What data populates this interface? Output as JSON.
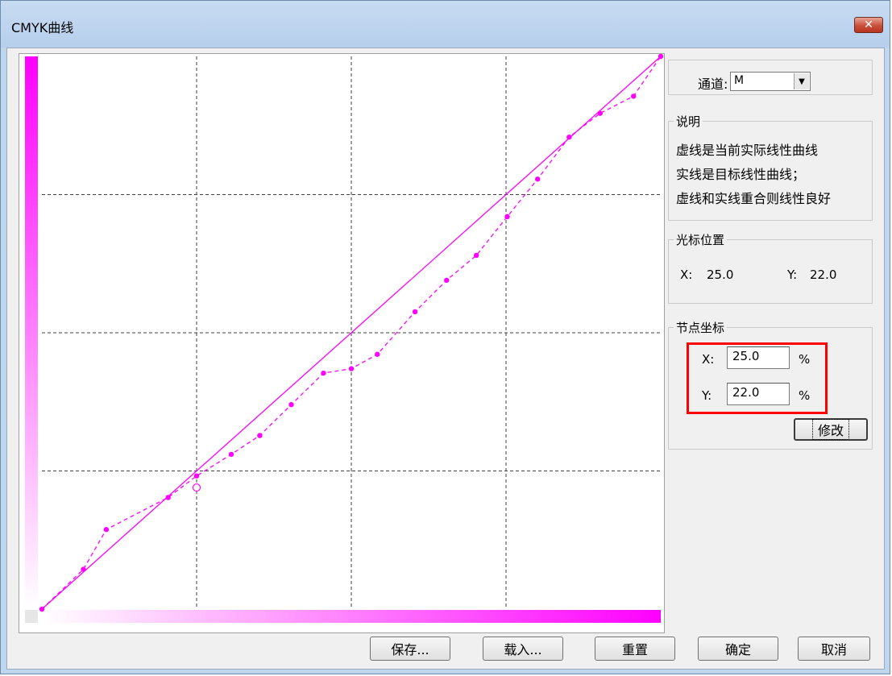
{
  "window": {
    "title": "CMYK曲线",
    "close_label": "✕"
  },
  "channel": {
    "label": "通道:",
    "value": "M",
    "arrow": "▼"
  },
  "description": {
    "title": "说明",
    "lines": [
      "虚线是当前实际线性曲线",
      "实线是目标线性曲线；",
      "虚线和实线重合则线性良好"
    ]
  },
  "cursor": {
    "title": "光标位置",
    "x_label": "X:",
    "x_value": "25.0",
    "y_label": "Y:",
    "y_value": "22.0"
  },
  "node": {
    "title": "节点坐标",
    "x_label": "X:",
    "x_value": "25.0",
    "y_label": "Y:",
    "y_value": "22.0",
    "unit": "%",
    "modify_label": "修改"
  },
  "buttons": {
    "save": "保存...",
    "load": "载入...",
    "reset": "重置",
    "ok": "确定",
    "cancel": "取消"
  },
  "colors": {
    "curve": "#ff00ff",
    "grid": "#404040",
    "highlight": "#ff0000"
  },
  "chart_data": {
    "type": "line",
    "xlim": [
      0,
      100
    ],
    "ylim": [
      0,
      100
    ],
    "grid": true,
    "series": [
      {
        "style": "solid",
        "points": [
          [
            0,
            0
          ],
          [
            100,
            100
          ]
        ]
      },
      {
        "style": "dashed",
        "points": [
          [
            0,
            0
          ],
          [
            6.7,
            7.2
          ],
          [
            10.4,
            14.4
          ],
          [
            20.4,
            20.2
          ],
          [
            25,
            24.1
          ],
          [
            30.6,
            28
          ],
          [
            35.2,
            31.4
          ],
          [
            40.3,
            37
          ],
          [
            45.5,
            42.7
          ],
          [
            50,
            43.5
          ],
          [
            54.2,
            46.1
          ],
          [
            60.3,
            53.8
          ],
          [
            65.4,
            59.5
          ],
          [
            70.2,
            64
          ],
          [
            75.2,
            71
          ],
          [
            80.1,
            77.8
          ],
          [
            85.2,
            85.4
          ],
          [
            90.2,
            89.7
          ],
          [
            95.6,
            92.8
          ],
          [
            100,
            100
          ]
        ]
      }
    ],
    "hollow_marker": [
      25,
      22
    ]
  }
}
